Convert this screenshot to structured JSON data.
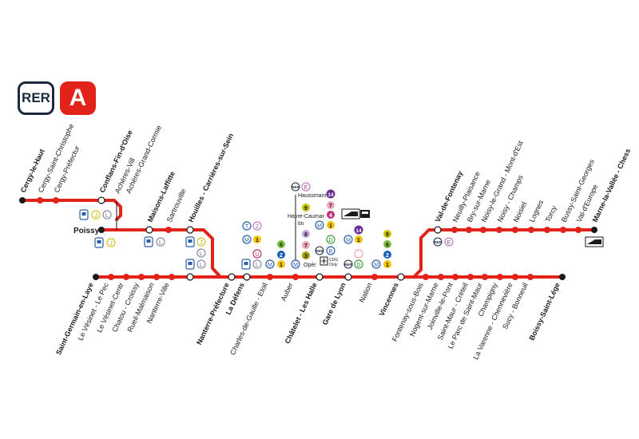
{
  "header": {
    "network_label": "RER",
    "line_label": "A"
  },
  "colors": {
    "line": "#e2231a",
    "text": "#1a1a1a",
    "logo_dark": "#1c2a3e"
  },
  "stations": {
    "cergy_le_haut": "Cergy-le-Haut",
    "cergy_saint_christophe": "Cergy-Saint-Christophe",
    "cergy_prefecture": "Cergy-Préfectur",
    "conflans": "Conflans-Fin-d'Oise",
    "acheres_ville": "Achères-Vill",
    "acheres_grand_cormier": "Achères-Grand-Cormie",
    "poissy": "Poissy",
    "maisons_laffitte": "Maisons-Laffitte",
    "sartrouville": "Sartrouville",
    "houilles": "Houilles - Carrières-sur-Sein",
    "saint_germain": "Saint-Germain-en-Laye",
    "le_vesinet_le_pec": "Le Vésinet - Le Pec",
    "le_vesinet_centre": "Le Vésinet-Centr",
    "chatou": "Chatou - Croissy",
    "rueil": "Rueil-Malmaison",
    "nanterre_ville": "Nanterre-Ville",
    "nanterre_prefecture": "Nanterre-Préfecture",
    "la_defense": "La Défens",
    "charles_de_gaulle": "Charles-de-Gaulle - Etoil",
    "auber": "Auber",
    "chatelet": "Châtelet - Les Halle",
    "gare_de_lyon": "Gare de Lyon",
    "nation": "Nation",
    "vincennes": "Vincennes",
    "fontenay": "Fontenay-sous-Bois",
    "nogent": "Nogent-sur-Marne",
    "joinville": "Joinville-le-Pont",
    "saint_maur_creteil": "Saint-Maur - Créteil",
    "le_parc_saint_maur": "Le Parc de Saint-Maur",
    "champigny": "Champigny",
    "la_varenne": "La Varenne - Chennevière",
    "sucy": "Sucy - Bonneuil",
    "boissy": "Boissy-Saint-Lége",
    "val_de_fontenay": "Val-de-Fontenay",
    "neuilly_plaisance": "Neuilly-Plaisance",
    "bry": "Bry-sur-Marne",
    "noisy_mont_est": "Noisy-le-Grand - Mont-d'Est",
    "noisy_champs": "Noisy - Champs",
    "noisiel": "Noisiel",
    "lognes": "Lognes",
    "torcy": "Torcy",
    "bussy": "Bussy-Saint-Georges",
    "val_europe": "Val-d'Europe",
    "marne_la_vallee": "Marne-la-Vallée - Chess"
  },
  "interchange_labels": {
    "haussmann": "Haussmann",
    "havre_caumartin": "Havre-Caumar",
    "havre_caumartin_2": "tin",
    "opera": "Opér",
    "cdg_only": "CDG",
    "cdg_only_2": "Only"
  },
  "badges": {
    "rer": "RER",
    "metro": "M",
    "tram": "T",
    "j": "J",
    "l": "L",
    "u": "U",
    "e": "E",
    "b": "B",
    "d": "D",
    "m1": "1",
    "m2": "2",
    "m3": "3",
    "m4": "4",
    "m6": "6",
    "m7": "7",
    "m8": "8",
    "m9": "9",
    "m14": "14",
    "t2": "2"
  }
}
